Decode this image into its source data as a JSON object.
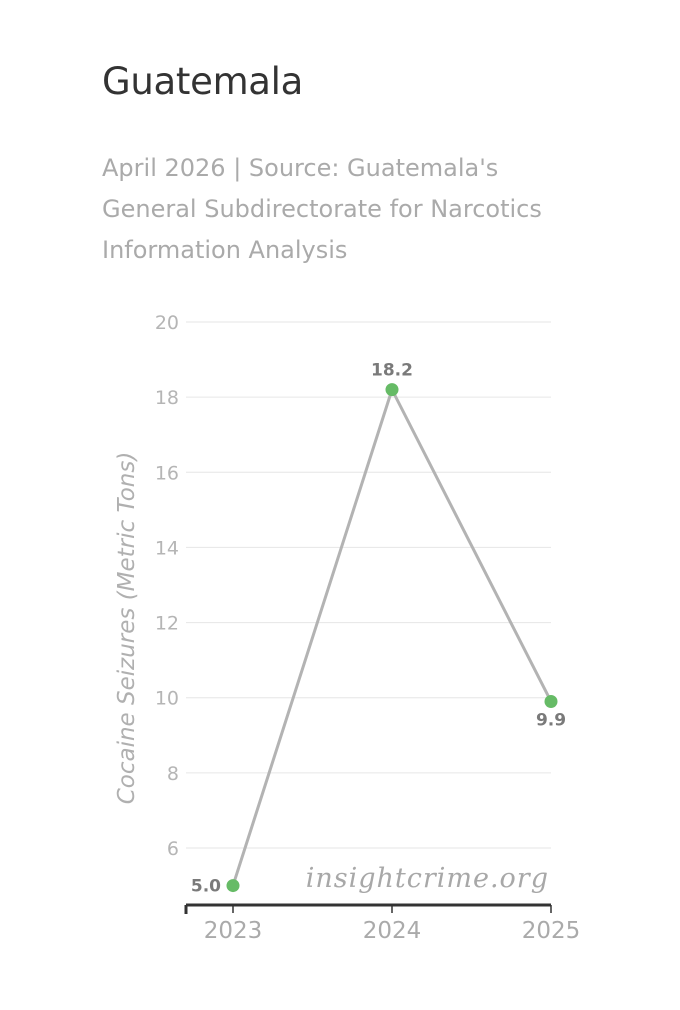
{
  "header": {
    "title": "Guatemala",
    "subtitle": "April 2026 | Source: Guatemala's General Subdirectorate for Narcotics Information Analysis"
  },
  "watermark": "insightcrime.org",
  "chart_data": {
    "type": "line",
    "x": [
      "2023",
      "2024",
      "2025"
    ],
    "series": [
      {
        "values": [
          5.0,
          18.2,
          9.9
        ],
        "labels": [
          "5.0",
          "18.2",
          "9.9"
        ],
        "color": "#b3b3b3",
        "marker_color": "#66bb66"
      }
    ],
    "ylabel": "Cocaine Seizures (Metric Tons)",
    "yticks": [
      "6",
      "8",
      "10",
      "12",
      "14",
      "16",
      "18",
      "20"
    ],
    "ylim": [
      4.5,
      20
    ],
    "grid": true,
    "legend": "none"
  }
}
